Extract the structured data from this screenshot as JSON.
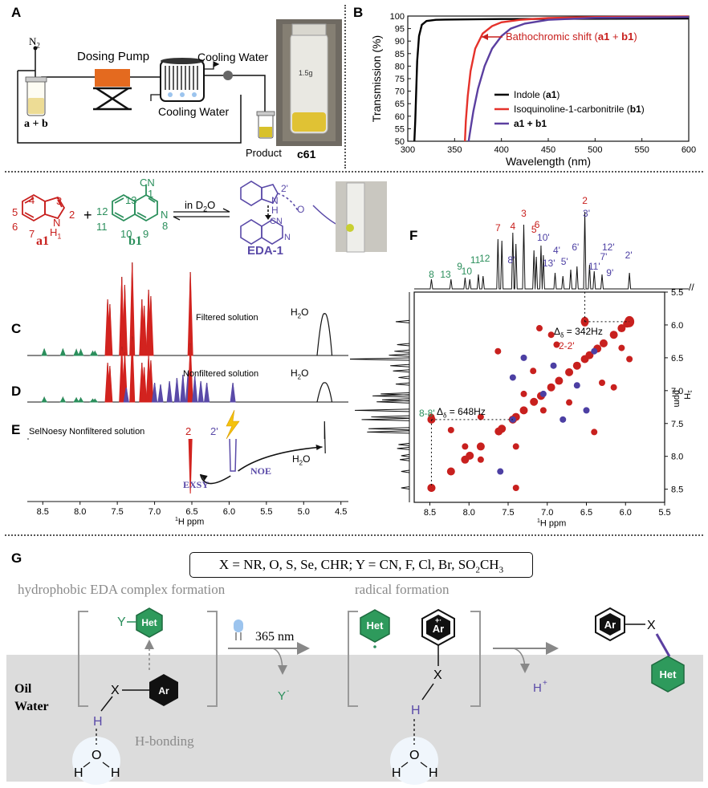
{
  "panel_labels": {
    "a": "A",
    "b": "B",
    "c": "C",
    "d": "D",
    "e": "E",
    "f": "F",
    "g": "G"
  },
  "panelA": {
    "n2": "N",
    "n2_sub": "2",
    "dosing_pump": "Dosing Pump",
    "cooling_water_out": "Cooling Water",
    "cooling_water_in": "Cooling Water",
    "reactants": "a + b",
    "product": "Product",
    "vial_label": "c61",
    "vial_writing": "1.5g",
    "colors": {
      "pump": "#e46a1f",
      "product": "#d8c12b",
      "flask": "#e8d68a"
    }
  },
  "chart_data": {
    "type": "line",
    "xlabel": "Wavelength (nm)",
    "ylabel": "Transmission (%)",
    "xlim": [
      300,
      600
    ],
    "ylim": [
      50,
      100
    ],
    "xticks": [
      300,
      350,
      400,
      450,
      500,
      550,
      600
    ],
    "yticks": [
      50,
      55,
      60,
      65,
      70,
      75,
      80,
      85,
      90,
      95,
      100
    ],
    "grid": false,
    "legend_position": "right",
    "annotation": {
      "text_before": "Bathochromic shift (",
      "bold1": "a1",
      "mid": " + ",
      "bold2": "b1",
      "text_after": ")",
      "color": "#c8201e"
    },
    "series": [
      {
        "name": "Indole (",
        "bold": "a1",
        "suffix": ")",
        "color": "#000000",
        "x": [
          307,
          308,
          309,
          310,
          312,
          315,
          320,
          330,
          340,
          400,
          600
        ],
        "y": [
          50,
          58,
          70,
          82,
          92,
          96.5,
          98,
          98.5,
          98.6,
          98.8,
          99
        ]
      },
      {
        "name": "Isoquinoline-1-carbonitrile (",
        "bold": "b1",
        "suffix": ")",
        "color": "#e5322b",
        "x": [
          361,
          362,
          364,
          367,
          372,
          380,
          390,
          400,
          420,
          450,
          500,
          600
        ],
        "y": [
          50,
          58,
          68,
          78,
          87,
          93,
          96,
          97.5,
          98.5,
          99.2,
          99.6,
          99.8
        ]
      },
      {
        "name": "",
        "bold": "a1 + b1",
        "suffix": "",
        "color": "#5b3fa0",
        "x": [
          365,
          367,
          370,
          375,
          382,
          390,
          400,
          410,
          425,
          450,
          500,
          600
        ],
        "y": [
          50,
          55,
          62,
          71,
          80,
          87,
          92,
          95,
          97,
          98.5,
          99.3,
          99.6
        ]
      }
    ]
  },
  "scheme": {
    "a1_numbers": {
      "n3": "3",
      "n2": "2",
      "n4": "4",
      "n5": "5",
      "n6": "6",
      "n7": "7",
      "n1": "1",
      "N": "N",
      "H": "H"
    },
    "a1_label": "a1",
    "plus": "+",
    "b1_numbers": {
      "n13": "13",
      "n12": "12",
      "n11": "11",
      "n10": "10",
      "n9": "9",
      "n8": "8",
      "n1": "1",
      "CN": "CN",
      "N": "N"
    },
    "b1_label": "b1",
    "condition": "in D",
    "condition_sub": "2",
    "condition_tail": "O",
    "eda_label": "EDA-1",
    "eda_2prime": "2'",
    "eda_H": "H",
    "eda_N": "N",
    "eda_O": "O",
    "eda_CN": "CN",
    "eda_N2": "N"
  },
  "nmr1d": {
    "c_label": "Filtered solution",
    "d_label": "Nonfiltered solution",
    "e_label": "SelNoesy Nonfiltered solution",
    "h2o": "H",
    "h2o_sub": "2",
    "h2o_tail": "O",
    "e_2": "2",
    "e_2p": "2'",
    "exsy": "EXSY",
    "noe": "NOE",
    "xlabel_sup": "1",
    "xlabel": "H ppm",
    "xticks": [
      "8.5",
      "8.0",
      "7.5",
      "7.0",
      "6.5",
      "6.0",
      "5.5",
      "5.0",
      "4.5"
    ]
  },
  "nmr2d": {
    "top_labels": [
      {
        "t": "8",
        "c": "green"
      },
      {
        "t": "13",
        "c": "green"
      },
      {
        "t": "9",
        "c": "green"
      },
      {
        "t": "10",
        "c": "green"
      },
      {
        "t": "11",
        "c": "green"
      },
      {
        "t": "12",
        "c": "green"
      },
      {
        "t": "8'",
        "c": "purple"
      },
      {
        "t": "7",
        "c": "red"
      },
      {
        "t": "4",
        "c": "red"
      },
      {
        "t": "3",
        "c": "red"
      },
      {
        "t": "6",
        "c": "red"
      },
      {
        "t": "5",
        "c": "red"
      },
      {
        "t": "10'",
        "c": "purple"
      },
      {
        "t": "13'",
        "c": "purple"
      },
      {
        "t": "4'",
        "c": "purple"
      },
      {
        "t": "5'",
        "c": "purple"
      },
      {
        "t": "6'",
        "c": "purple"
      },
      {
        "t": "2",
        "c": "red"
      },
      {
        "t": "3'",
        "c": "purple"
      },
      {
        "t": "11'",
        "c": "purple"
      },
      {
        "t": "7'",
        "c": "purple"
      },
      {
        "t": "12'",
        "c": "purple"
      },
      {
        "t": "9'",
        "c": "purple"
      },
      {
        "t": "2'",
        "c": "purple"
      }
    ],
    "delta1": "Δ",
    "delta1_sub": "δ",
    "delta1_val": " = 342Hz",
    "delta2": "Δ",
    "delta2_sub": "δ",
    "delta2_val": " = 648Hz",
    "label_22": "2-2'",
    "label_88": "8-8'",
    "xticks": [
      "8.5",
      "8.0",
      "7.5",
      "7.0",
      "6.5",
      "6.0",
      "5.5"
    ],
    "yticks": [
      "5.5",
      "6.0",
      "6.5",
      "7.0",
      "7.5",
      "8.0",
      "8.5"
    ],
    "xlabel_sup": "1",
    "xlabel": "H ppm",
    "ylabel_sup": "1",
    "ylabel": "H ppm"
  },
  "panelG": {
    "formula_parts": [
      "X = NR, O, S, Se, CHR; Y = CN, F, Cl, Br, SO",
      "2",
      "CH",
      "3"
    ],
    "step1": "hydrophobic EDA complex formation",
    "step2": "radical formation",
    "het": "Het",
    "ar": "Ar",
    "y": "Y",
    "x": "X",
    "h": "H",
    "o": "O",
    "wavelength": "365 nm",
    "y_minus": "Y",
    "y_minus_sup": "-",
    "h_plus": "H",
    "h_plus_sup": "+",
    "oil": "Oil",
    "water": "Water",
    "hbond": "H-bonding",
    "radical_plus": "+·"
  }
}
